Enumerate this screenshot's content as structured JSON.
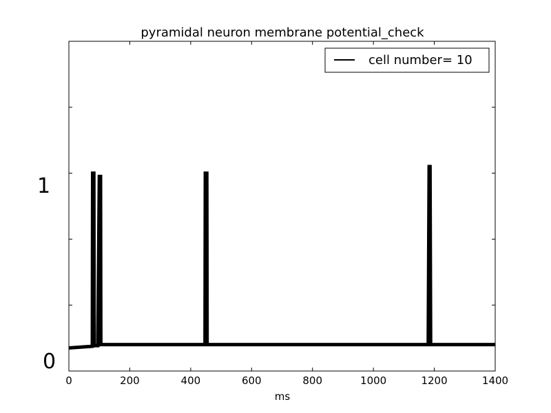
{
  "chart_data": {
    "type": "line",
    "title": "pyramidal neuron membrane potential_check",
    "xlabel": "ms",
    "ylabel": "",
    "xlim": [
      0,
      1400
    ],
    "ylim": [
      0,
      1
    ],
    "xticks": [
      0,
      200,
      400,
      600,
      800,
      1000,
      1200,
      1400
    ],
    "yticks": [
      0,
      0.2,
      0.4,
      0.6,
      0.8,
      1
    ],
    "overlay_labels": [
      "1",
      "0"
    ],
    "legend": {
      "position": "top-right"
    },
    "series": [
      {
        "name": "cell number= 10",
        "color": "#000000",
        "x": [
          0,
          77,
          78,
          82,
          83,
          95,
          100,
          104,
          105,
          200,
          400,
          447,
          448,
          453,
          454,
          600,
          800,
          1000,
          1180,
          1183,
          1186,
          1188,
          1200,
          1400
        ],
        "y": [
          0.07,
          0.075,
          0.6,
          0.6,
          0.077,
          0.077,
          0.59,
          0.59,
          0.08,
          0.08,
          0.08,
          0.08,
          0.6,
          0.6,
          0.08,
          0.08,
          0.08,
          0.08,
          0.08,
          0.62,
          0.62,
          0.08,
          0.08,
          0.08
        ]
      }
    ]
  }
}
